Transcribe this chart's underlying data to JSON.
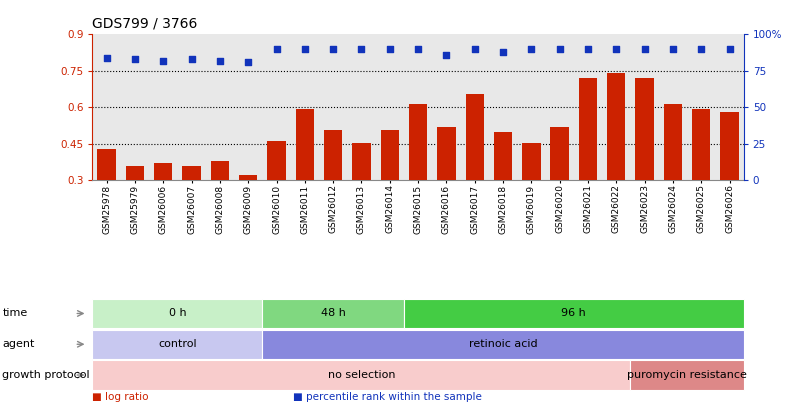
{
  "title": "GDS799 / 3766",
  "samples": [
    "GSM25978",
    "GSM25979",
    "GSM26006",
    "GSM26007",
    "GSM26008",
    "GSM26009",
    "GSM26010",
    "GSM26011",
    "GSM26012",
    "GSM26013",
    "GSM26014",
    "GSM26015",
    "GSM26016",
    "GSM26017",
    "GSM26018",
    "GSM26019",
    "GSM26020",
    "GSM26021",
    "GSM26022",
    "GSM26023",
    "GSM26024",
    "GSM26025",
    "GSM26026"
  ],
  "log_ratio": [
    0.43,
    0.36,
    0.37,
    0.36,
    0.38,
    0.32,
    0.46,
    0.595,
    0.505,
    0.455,
    0.505,
    0.615,
    0.52,
    0.655,
    0.5,
    0.455,
    0.52,
    0.72,
    0.74,
    0.72,
    0.615,
    0.595,
    0.58
  ],
  "percentile_rank_pct": [
    84,
    83,
    82,
    83,
    82,
    81,
    90,
    90,
    90,
    90,
    90,
    90,
    86,
    90,
    88,
    90,
    90,
    90,
    90,
    90,
    90,
    90,
    90
  ],
  "bar_color": "#cc2200",
  "dot_color": "#1133bb",
  "ylim_left": [
    0.3,
    0.9
  ],
  "ylim_right": [
    0,
    100
  ],
  "yticks_left": [
    0.3,
    0.45,
    0.6,
    0.75,
    0.9
  ],
  "yticks_right": [
    0,
    25,
    50,
    75,
    100
  ],
  "ytick_labels_right": [
    "0",
    "25",
    "50",
    "75",
    "100%"
  ],
  "hlines": [
    0.45,
    0.6,
    0.75
  ],
  "time_groups": [
    {
      "label": "0 h",
      "start": 0,
      "end": 6,
      "color": "#c8f0c8"
    },
    {
      "label": "48 h",
      "start": 6,
      "end": 11,
      "color": "#80d880"
    },
    {
      "label": "96 h",
      "start": 11,
      "end": 23,
      "color": "#44cc44"
    }
  ],
  "agent_groups": [
    {
      "label": "control",
      "start": 0,
      "end": 6,
      "color": "#c8c8f0"
    },
    {
      "label": "retinoic acid",
      "start": 6,
      "end": 23,
      "color": "#8888dd"
    }
  ],
  "growth_groups": [
    {
      "label": "no selection",
      "start": 0,
      "end": 19,
      "color": "#f8cccc"
    },
    {
      "label": "puromycin resistance",
      "start": 19,
      "end": 23,
      "color": "#dd8888"
    }
  ],
  "row_label_names": [
    "time",
    "agent",
    "growth protocol"
  ],
  "legend_entries": [
    {
      "label": "log ratio",
      "color": "#cc2200"
    },
    {
      "label": "percentile rank within the sample",
      "color": "#1133bb"
    }
  ],
  "background_color": "#ffffff",
  "plot_bg_color": "#e8e8e8",
  "title_fontsize": 10,
  "tick_fontsize": 7.5,
  "sample_fontsize": 6.5,
  "annot_fontsize": 8
}
